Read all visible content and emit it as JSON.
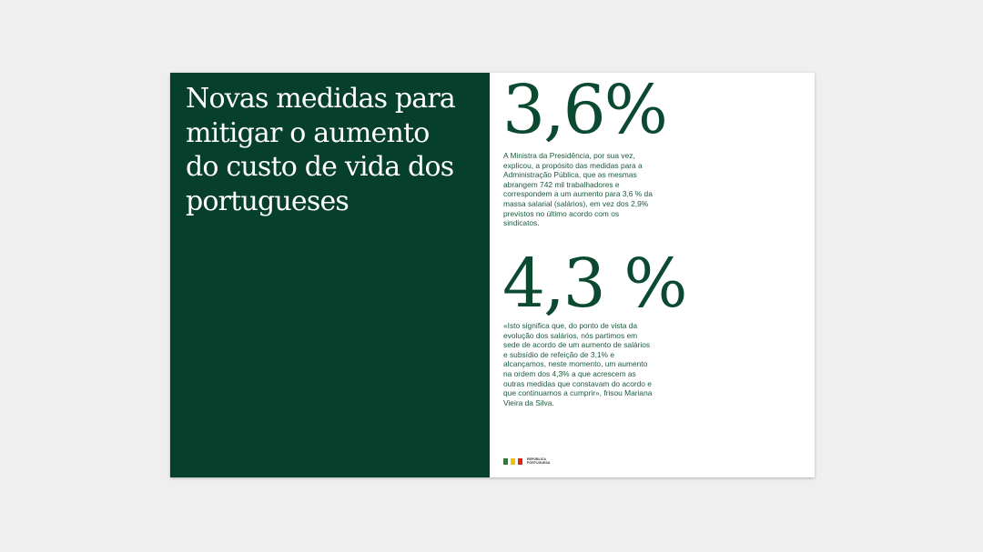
{
  "left_page": {
    "title_lines": [
      "Novas medidas para",
      "mitigar o aumento",
      "do custo de vida dos",
      "portugueses"
    ]
  },
  "right_page": {
    "sections": [
      {
        "figure": "3,6%",
        "text_lines": [
          "A Ministra da Presidência, por sua vez,",
          "explicou, a propósito das medidas para a",
          "Administração Pública, que as mesmas",
          "abrangem 742 mil trabalhadores e",
          "correspondem a um aumento para 3,6 % da",
          "massa salarial (salários), em vez dos 2,9%",
          "previstos no último acordo com os",
          "sindicatos."
        ]
      },
      {
        "figure": "4,3 %",
        "text_lines": [
          "«Isto significa que, do ponto de vista da",
          "evolução dos salários, nós partimos em",
          "sede de acordo de um aumento de salários",
          "e subsídio de refeição de 3,1% e",
          "alcançamos, neste momento, um aumento",
          "na ordem dos 4,3% a que acrescem as",
          "outras medidas que constavam do acordo e",
          "que continuamos a cumprir», frisou Mariana",
          "Vieira da Silva."
        ]
      }
    ],
    "logo_lines": [
      "REPÚBLICA",
      "PORTUGUESA"
    ]
  }
}
